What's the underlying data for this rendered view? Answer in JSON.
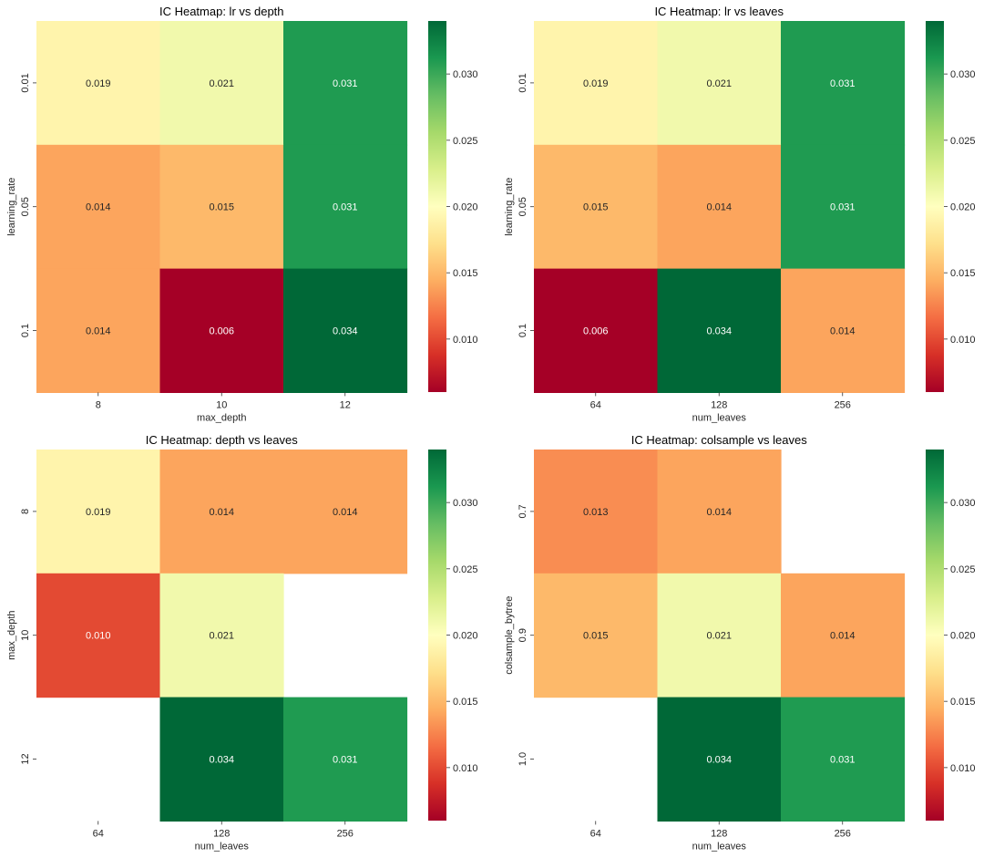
{
  "colorbar": {
    "vmin": 0.006,
    "vmax": 0.034,
    "ticks": [
      "0.010",
      "0.015",
      "0.020",
      "0.025",
      "0.030"
    ],
    "colormap": "RdYlGn",
    "stops": [
      "#a50026",
      "#d73027",
      "#f46d43",
      "#fdae61",
      "#fee08b",
      "#ffffbf",
      "#d9ef8b",
      "#a6d96a",
      "#66bd63",
      "#1a9850",
      "#006837"
    ]
  },
  "chart_data": [
    {
      "type": "heatmap",
      "title": "IC Heatmap: lr vs depth",
      "xlabel": "max_depth",
      "ylabel": "learning_rate",
      "x_categories": [
        "8",
        "10",
        "12"
      ],
      "y_categories": [
        "0.01",
        "0.05",
        "0.1"
      ],
      "values": [
        [
          0.019,
          0.021,
          0.031
        ],
        [
          0.014,
          0.015,
          0.031
        ],
        [
          0.014,
          0.006,
          0.034
        ]
      ],
      "labels": [
        [
          "0.019",
          "0.021",
          "0.031"
        ],
        [
          "0.014",
          "0.015",
          "0.031"
        ],
        [
          "0.014",
          "0.006",
          "0.034"
        ]
      ]
    },
    {
      "type": "heatmap",
      "title": "IC Heatmap: lr vs leaves",
      "xlabel": "num_leaves",
      "ylabel": "learning_rate",
      "x_categories": [
        "64",
        "128",
        "256"
      ],
      "y_categories": [
        "0.01",
        "0.05",
        "0.1"
      ],
      "values": [
        [
          0.019,
          0.021,
          0.031
        ],
        [
          0.015,
          0.014,
          0.031
        ],
        [
          0.006,
          0.034,
          0.014
        ]
      ],
      "labels": [
        [
          "0.019",
          "0.021",
          "0.031"
        ],
        [
          "0.015",
          "0.014",
          "0.031"
        ],
        [
          "0.006",
          "0.034",
          "0.014"
        ]
      ]
    },
    {
      "type": "heatmap",
      "title": "IC Heatmap: depth vs leaves",
      "xlabel": "num_leaves",
      "ylabel": "max_depth",
      "x_categories": [
        "64",
        "128",
        "256"
      ],
      "y_categories": [
        "8",
        "10",
        "12"
      ],
      "values": [
        [
          0.019,
          0.014,
          0.014
        ],
        [
          0.01,
          0.021,
          null
        ],
        [
          null,
          0.034,
          0.031
        ]
      ],
      "labels": [
        [
          "0.019",
          "0.014",
          "0.014"
        ],
        [
          "0.010",
          "0.021",
          null
        ],
        [
          null,
          "0.034",
          "0.031"
        ]
      ]
    },
    {
      "type": "heatmap",
      "title": "IC Heatmap: colsample vs leaves",
      "xlabel": "num_leaves",
      "ylabel": "colsample_bytree",
      "x_categories": [
        "64",
        "128",
        "256"
      ],
      "y_categories": [
        "0.7",
        "0.9",
        "1.0"
      ],
      "values": [
        [
          0.013,
          0.014,
          null
        ],
        [
          0.015,
          0.021,
          0.014
        ],
        [
          null,
          0.034,
          0.031
        ]
      ],
      "labels": [
        [
          "0.013",
          "0.014",
          null
        ],
        [
          "0.015",
          "0.021",
          "0.014"
        ],
        [
          null,
          "0.034",
          "0.031"
        ]
      ]
    }
  ]
}
